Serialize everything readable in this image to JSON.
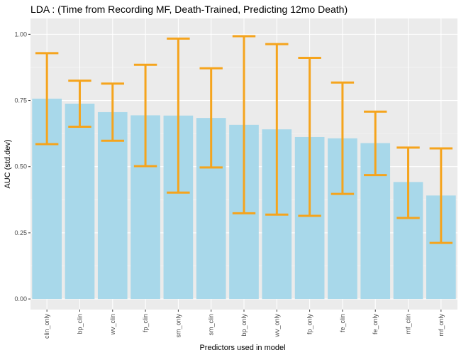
{
  "chart_data": {
    "type": "bar",
    "title": "LDA : (Time from Recording MF, Death-Trained, Predicting 12mo Death)",
    "xlabel": "Predictors used in model",
    "ylabel": "AUC (std.dev)",
    "ylim": [
      -0.04,
      1.06
    ],
    "yticks": [
      0.0,
      0.25,
      0.5,
      0.75,
      1.0
    ],
    "ytick_labels": [
      "0.00",
      "0.25",
      "0.50",
      "0.75",
      "1.00"
    ],
    "categories": [
      "clin_only",
      "bp_clin",
      "wv_clin",
      "fp_clin",
      "sm_only",
      "sm_clin",
      "bp_only",
      "wv_only",
      "fp_only",
      "fe_clin",
      "fe_only",
      "mf_clin",
      "mf_only"
    ],
    "values": [
      0.757,
      0.738,
      0.706,
      0.694,
      0.693,
      0.684,
      0.658,
      0.641,
      0.612,
      0.607,
      0.589,
      0.442,
      0.391
    ],
    "error_lower": [
      0.585,
      0.651,
      0.598,
      0.502,
      0.402,
      0.497,
      0.324,
      0.319,
      0.314,
      0.397,
      0.468,
      0.306,
      0.212
    ],
    "error_upper": [
      0.929,
      0.825,
      0.814,
      0.885,
      0.984,
      0.872,
      0.993,
      0.963,
      0.911,
      0.818,
      0.708,
      0.572,
      0.569
    ],
    "grid": true,
    "legend": "none",
    "colors": {
      "bar": "#a8d8ea",
      "error_bar": "#f5a41d",
      "panel": "#ebebeb",
      "grid": "#ffffff"
    }
  }
}
